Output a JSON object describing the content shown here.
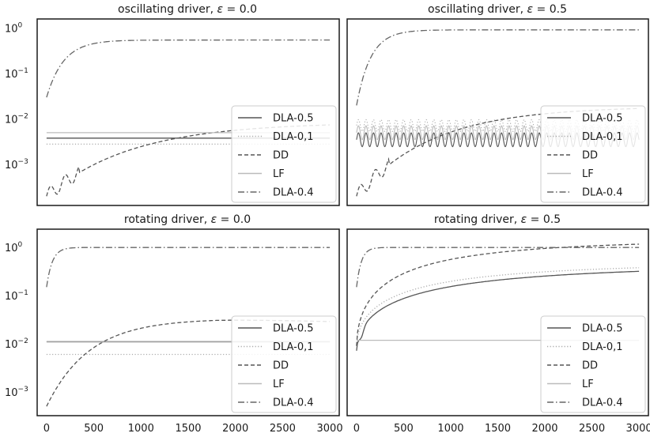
{
  "chart_data": [
    {
      "type": "line",
      "title": "oscillating driver, ε = 0.0",
      "title_prefix": "oscillating driver, ",
      "title_eps": "ε",
      "title_suffix": " = 0.0",
      "xlabel": "",
      "ylabel": "",
      "xlim": [
        -100,
        3100
      ],
      "ylim": [
        0.000125,
        1.6
      ],
      "yscale": "log",
      "xticks": [],
      "yticks": [
        "10^0",
        "10^-1",
        "10^-2",
        "10^-3"
      ],
      "legend": "lower-right",
      "series": [
        {
          "name": "DLA-0.5",
          "kind": "flat",
          "level": 0.0038,
          "color": "#555555",
          "dash": "solid"
        },
        {
          "name": "DLA-0,1",
          "kind": "flat",
          "level": 0.0028,
          "color": "#aaaaaa",
          "dash": "dotted"
        },
        {
          "name": "DD",
          "kind": "rise",
          "start": 0.0002,
          "end": 0.0085,
          "tau": 900,
          "color": "#555555",
          "dash": "dashed"
        },
        {
          "name": "LF",
          "kind": "flat",
          "level": 0.005,
          "color": "#bbbbbb",
          "dash": "solid"
        },
        {
          "name": "DLA-0.4",
          "kind": "rise",
          "start": 0.03,
          "end": 0.55,
          "tau": 180,
          "color": "#666666",
          "dash": "dashdot"
        }
      ]
    },
    {
      "type": "line",
      "title": "oscillating driver, ε = 0.5",
      "title_prefix": "oscillating driver, ",
      "title_eps": "ε",
      "title_suffix": " = 0.5",
      "xlabel": "",
      "ylabel": "",
      "xlim": [
        -100,
        3100
      ],
      "ylim": [
        0.000125,
        1.6
      ],
      "yscale": "log",
      "xticks": [],
      "yticks": [],
      "legend": "lower-right",
      "series": [
        {
          "name": "DLA-0.5",
          "kind": "osc",
          "level": 0.0035,
          "amp": 0.35,
          "period": 80,
          "color": "#555555",
          "dash": "solid"
        },
        {
          "name": "DLA-0,1",
          "kind": "osc",
          "level": 0.0072,
          "amp": 0.3,
          "period": 80,
          "color": "#aaaaaa",
          "dash": "dotted"
        },
        {
          "name": "DD",
          "kind": "rise",
          "start": 0.0002,
          "end": 0.019,
          "tau": 800,
          "color": "#555555",
          "dash": "dashed"
        },
        {
          "name": "LF",
          "kind": "osc",
          "level": 0.005,
          "amp": 0.35,
          "period": 80,
          "color": "#bbbbbb",
          "dash": "solid"
        },
        {
          "name": "DLA-0.4",
          "kind": "rise",
          "start": 0.02,
          "end": 0.92,
          "tau": 150,
          "color": "#666666",
          "dash": "dashdot"
        }
      ]
    },
    {
      "type": "line",
      "title": "rotating driver, ε = 0.0",
      "title_prefix": "rotating driver, ",
      "title_eps": "ε",
      "title_suffix": " = 0.0",
      "xlabel": "",
      "ylabel": "",
      "xlim": [
        -100,
        3100
      ],
      "ylim": [
        0.00032,
        2.4
      ],
      "yscale": "log",
      "xticks": [
        0,
        500,
        1000,
        1500,
        2000,
        2500,
        3000
      ],
      "yticks": [
        "10^0",
        "10^-1",
        "10^-2",
        "10^-3"
      ],
      "legend": "lower-right",
      "series": [
        {
          "name": "DLA-0.5",
          "kind": "flat",
          "level": 0.011,
          "color": "#555555",
          "dash": "solid"
        },
        {
          "name": "DLA-0,1",
          "kind": "flat",
          "level": 0.006,
          "color": "#aaaaaa",
          "dash": "dotted"
        },
        {
          "name": "DD",
          "kind": "hump",
          "start": 0.0005,
          "end": 0.033,
          "tau": 450,
          "color": "#555555",
          "dash": "dashed"
        },
        {
          "name": "LF",
          "kind": "flat",
          "level": 0.0108,
          "color": "#bbbbbb",
          "dash": "solid"
        },
        {
          "name": "DLA-0.4",
          "kind": "rise",
          "start": 0.15,
          "end": 1.0,
          "tau": 60,
          "color": "#666666",
          "dash": "dashdot"
        }
      ]
    },
    {
      "type": "line",
      "title": "rotating driver, ε = 0.5",
      "title_prefix": "rotating driver, ",
      "title_eps": "ε",
      "title_suffix": " = 0.5",
      "xlabel": "",
      "ylabel": "",
      "xlim": [
        -100,
        3100
      ],
      "ylim": [
        0.00032,
        2.4
      ],
      "yscale": "log",
      "xticks": [
        0,
        500,
        1000,
        1500,
        2000,
        2500,
        3000
      ],
      "yticks": [],
      "legend": "lower-right",
      "series": [
        {
          "name": "DLA-0.5",
          "kind": "slow",
          "start": 0.0075,
          "end": 0.46,
          "tau": 600,
          "p": 0.55,
          "dip": true,
          "color": "#555555",
          "dash": "solid"
        },
        {
          "name": "DLA-0,1",
          "kind": "slow",
          "start": 0.009,
          "end": 0.5,
          "tau": 500,
          "p": 0.55,
          "color": "#aaaaaa",
          "dash": "dotted"
        },
        {
          "name": "DD",
          "kind": "slow",
          "start": 0.009,
          "end": 1.5,
          "tau": 400,
          "p": 0.55,
          "color": "#555555",
          "dash": "dashed"
        },
        {
          "name": "LF",
          "kind": "flat",
          "level": 0.0118,
          "color": "#bbbbbb",
          "dash": "solid"
        },
        {
          "name": "DLA-0.4",
          "kind": "rise",
          "start": 0.15,
          "end": 1.0,
          "tau": 50,
          "color": "#666666",
          "dash": "dashdot"
        }
      ]
    }
  ]
}
